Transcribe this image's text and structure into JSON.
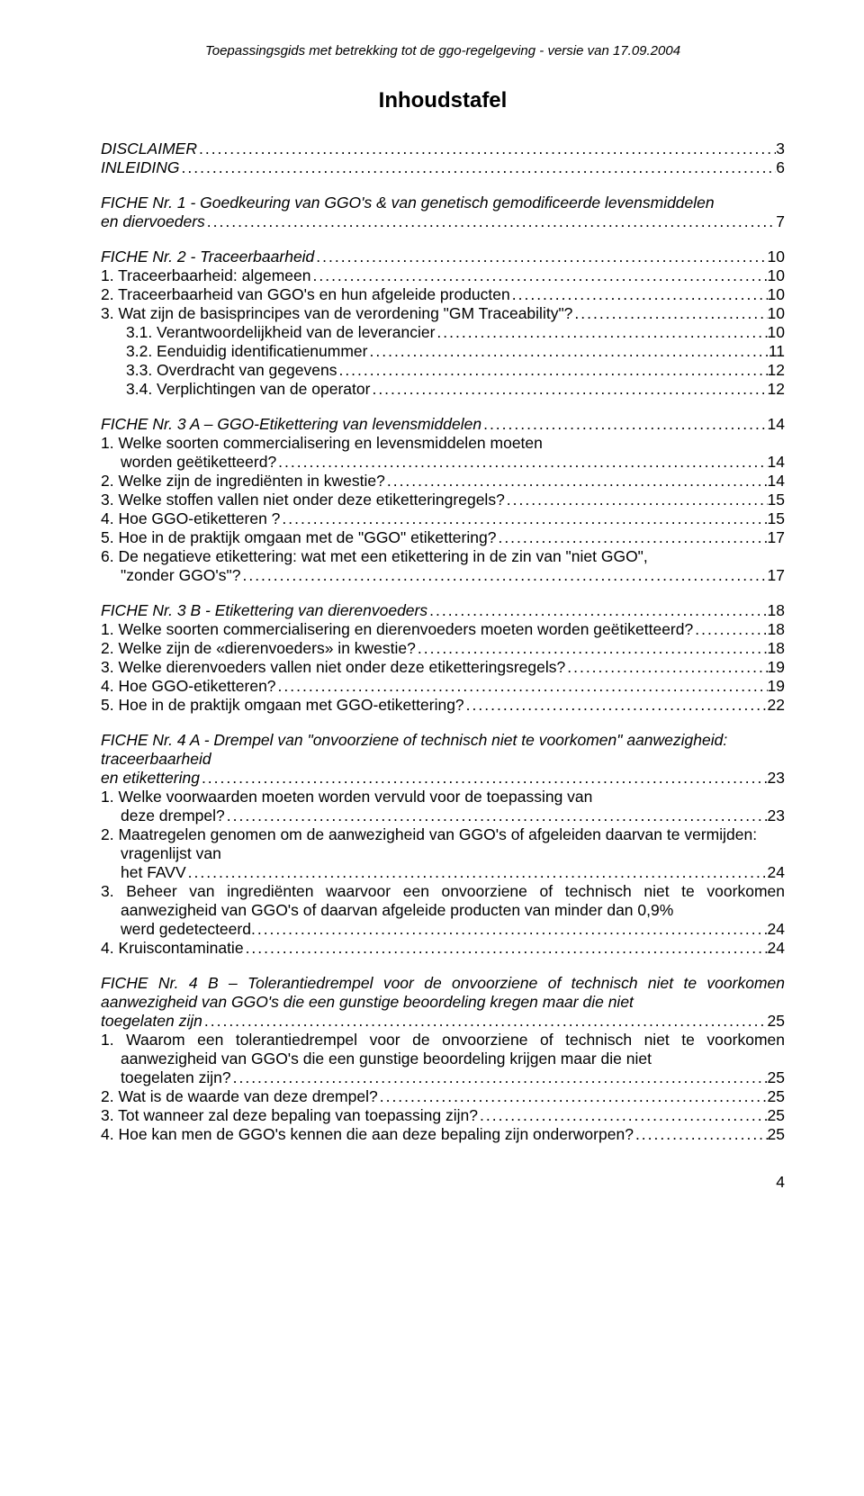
{
  "header": "Toepassingsgids met betrekking tot de ggo-regelgeving - versie van 17.09.2004",
  "title": "Inhoudstafel",
  "pageNumber": "4",
  "toc": [
    {
      "type": "entry",
      "italic": true,
      "label": "DISCLAIMER",
      "page": "3"
    },
    {
      "type": "entry",
      "italic": true,
      "label": "INLEIDING",
      "page": "6"
    },
    {
      "type": "gap"
    },
    {
      "type": "entry",
      "italic": true,
      "label": "FICHE Nr. 1 - Goedkeuring van GGO's & van genetisch gemodificeerde levensmiddelen en diervoeders",
      "page": "7",
      "wrap": true
    },
    {
      "type": "gap"
    },
    {
      "type": "entry",
      "italic": true,
      "label": "FICHE Nr. 2 - Traceerbaarheid",
      "page": "10"
    },
    {
      "type": "entry",
      "italic": false,
      "label": "1. Traceerbaarheid: algemeen",
      "page": "10"
    },
    {
      "type": "entry",
      "italic": false,
      "label": "2. Traceerbaarheid van GGO's en hun afgeleide producten",
      "page": "10"
    },
    {
      "type": "entry",
      "italic": false,
      "label": "3. Wat zijn de basisprincipes van de verordening \"GM Traceability\"?",
      "page": "10"
    },
    {
      "type": "entry",
      "italic": false,
      "label": "3.1. Verantwoordelijkheid van de leverancier",
      "page": "10",
      "indent": true
    },
    {
      "type": "entry",
      "italic": false,
      "label": "3.2. Eenduidig identificatienummer",
      "page": "11",
      "indent": true
    },
    {
      "type": "entry",
      "italic": false,
      "label": "3.3. Overdracht van gegevens",
      "page": "12",
      "indent": true
    },
    {
      "type": "entry",
      "italic": false,
      "label": "3.4. Verplichtingen van de operator",
      "page": "12",
      "indent": true
    },
    {
      "type": "gap"
    },
    {
      "type": "entry",
      "italic": true,
      "label": "FICHE Nr. 3 A – GGO-Etikettering van levensmiddelen",
      "page": "14"
    },
    {
      "type": "entry",
      "italic": false,
      "label": "1. Welke soorten commercialisering en levensmiddelen moeten worden geëtiketteerd?",
      "page": "14",
      "wrap": true,
      "justify": true
    },
    {
      "type": "entry",
      "italic": false,
      "label": "2. Welke zijn de ingrediënten in kwestie?",
      "page": "14"
    },
    {
      "type": "entry",
      "italic": false,
      "label": "3. Welke stoffen vallen niet onder deze etiketteringregels?",
      "page": "15"
    },
    {
      "type": "entry",
      "italic": false,
      "label": "4. Hoe GGO-etiketteren ?",
      "page": "15"
    },
    {
      "type": "entry",
      "italic": false,
      "label": "5. Hoe in de praktijk omgaan met de \"GGO\" etikettering?",
      "page": "17"
    },
    {
      "type": "entry",
      "italic": false,
      "label": "6. De negatieve etikettering: wat met een etikettering in de zin van \"niet GGO\", \"zonder GGO's\"?",
      "page": "17",
      "wrap": true
    },
    {
      "type": "gap"
    },
    {
      "type": "entry",
      "italic": true,
      "label": "FICHE Nr. 3 B - Etikettering van dierenvoeders",
      "page": "18"
    },
    {
      "type": "entry",
      "italic": false,
      "label": "1. Welke soorten commercialisering en dierenvoeders moeten worden geëtiketteerd?",
      "page": "18"
    },
    {
      "type": "entry",
      "italic": false,
      "label": "2. Welke zijn de «dierenvoeders» in kwestie?",
      "page": "18"
    },
    {
      "type": "entry",
      "italic": false,
      "label": "3. Welke dierenvoeders vallen niet onder deze etiketteringsregels?",
      "page": "19"
    },
    {
      "type": "entry",
      "italic": false,
      "label": "4. Hoe GGO-etiketteren?",
      "page": "19"
    },
    {
      "type": "entry",
      "italic": false,
      "label": "5. Hoe in de praktijk omgaan met GGO-etikettering?",
      "page": "22"
    },
    {
      "type": "gap"
    },
    {
      "type": "entry",
      "italic": true,
      "label": "FICHE Nr. 4 A - Drempel van \"onvoorziene of technisch niet te voorkomen\" aanwezigheid: traceerbaarheid en etikettering",
      "page": "23",
      "wrap": true
    },
    {
      "type": "entry",
      "italic": false,
      "label": "1. Welke voorwaarden moeten worden vervuld voor de toepassing van deze drempel?",
      "page": "23",
      "wrap": true,
      "justify": true
    },
    {
      "type": "entry",
      "italic": false,
      "label": "2. Maatregelen genomen om de aanwezigheid van GGO's of afgeleiden daarvan te vermijden: vragenlijst van het FAVV",
      "page": "24",
      "wrap": true
    },
    {
      "type": "entry",
      "italic": false,
      "label": "3. Beheer van ingrediënten waarvoor een onvoorziene of technisch niet te voorkomen aanwezigheid van GGO's of daarvan afgeleide producten van minder dan 0,9% werd gedetecteerd.",
      "page": "24",
      "wrap": true,
      "justify": true
    },
    {
      "type": "entry",
      "italic": false,
      "label": "4. Kruiscontaminatie",
      "page": "24"
    },
    {
      "type": "gap"
    },
    {
      "type": "entry",
      "italic": true,
      "label": "FICHE Nr. 4 B – Tolerantiedrempel voor de onvoorziene of technisch niet te voorkomen aanwezigheid van GGO's die een gunstige beoordeling kregen maar die niet toegelaten zijn",
      "page": "25",
      "wrap": true,
      "justify": true
    },
    {
      "type": "entry",
      "italic": false,
      "label": "1. Waarom een tolerantiedrempel voor de onvoorziene of technisch niet te voorkomen aanwezigheid van GGO's die een gunstige beoordeling krijgen maar die niet toegelaten zijn?",
      "page": "25",
      "wrap": true,
      "justify": true
    },
    {
      "type": "entry",
      "italic": false,
      "label": "2. Wat is de waarde van deze drempel?",
      "page": "25"
    },
    {
      "type": "entry",
      "italic": false,
      "label": "3. Tot wanneer zal deze bepaling van toepassing zijn?",
      "page": "25"
    },
    {
      "type": "entry",
      "italic": false,
      "label": "4. Hoe kan men de GGO's kennen die aan deze bepaling zijn onderworpen?",
      "page": "25"
    }
  ]
}
